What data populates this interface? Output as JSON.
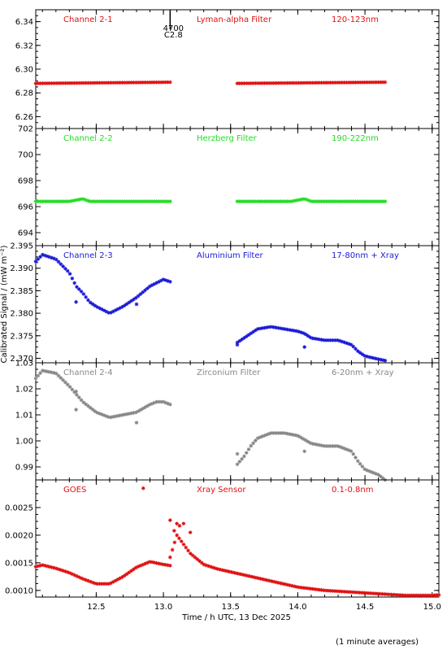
{
  "chart_data": [
    {
      "type": "scatter",
      "panel": "channel-2-1",
      "title": "Channel 2-1",
      "filter": "Lyman-alpha Filter",
      "range": "120-123nm",
      "color": "#e01010",
      "ylim": [
        6.25,
        6.35
      ],
      "yticks": [
        6.26,
        6.28,
        6.3,
        6.32,
        6.34
      ],
      "tick_decimals": 2,
      "marker_label": "4700",
      "marker_sublabel": "C2.8",
      "marker_x": 13.05,
      "segments": [
        {
          "x": [
            12.05,
            13.05
          ],
          "y": [
            6.288,
            6.289
          ]
        },
        {
          "x": [
            13.55,
            14.65
          ],
          "y": [
            6.288,
            6.289
          ]
        }
      ]
    },
    {
      "type": "scatter",
      "panel": "channel-2-2",
      "title": "Channel 2-2",
      "filter": "Herzberg Filter",
      "range": "190-222nm",
      "color": "#22dd22",
      "ylim": [
        693,
        702
      ],
      "yticks": [
        694,
        696,
        698,
        700,
        702
      ],
      "tick_decimals": 0,
      "segments": [
        {
          "x": [
            12.05,
            12.3,
            12.35,
            12.4,
            12.45,
            13.05
          ],
          "y": [
            696.4,
            696.4,
            696.5,
            696.6,
            696.4,
            696.4
          ]
        },
        {
          "x": [
            13.55,
            13.95,
            14.0,
            14.05,
            14.1,
            14.65
          ],
          "y": [
            696.4,
            696.4,
            696.5,
            696.6,
            696.4,
            696.4
          ]
        }
      ]
    },
    {
      "type": "scatter",
      "panel": "channel-2-3",
      "title": "Channel 2-3",
      "filter": "Aluminium Filter",
      "range": "17-80nm + Xray",
      "color": "#1a1ad8",
      "ylim": [
        2.369,
        2.395
      ],
      "yticks": [
        2.37,
        2.375,
        2.38,
        2.385,
        2.39,
        2.395
      ],
      "tick_decimals": 3,
      "segments": [
        {
          "x": [
            12.05,
            12.1,
            12.2,
            12.3,
            12.35,
            12.4,
            12.45,
            12.5,
            12.6,
            12.7,
            12.8,
            12.9,
            13.0,
            13.05
          ],
          "y": [
            2.3915,
            2.393,
            2.392,
            2.389,
            2.386,
            2.3845,
            2.3825,
            2.3815,
            2.38,
            2.3815,
            2.3835,
            2.386,
            2.3875,
            2.387
          ]
        },
        {
          "x": [
            13.55,
            13.6,
            13.65,
            13.7,
            13.8,
            13.9,
            14.0,
            14.05,
            14.1,
            14.2,
            14.3,
            14.4,
            14.45,
            14.5,
            14.6,
            14.65
          ],
          "y": [
            2.3735,
            2.3745,
            2.3755,
            2.3765,
            2.377,
            2.3765,
            2.376,
            2.3755,
            2.3745,
            2.374,
            2.374,
            2.373,
            2.3715,
            2.3705,
            2.3698,
            2.3695
          ]
        }
      ],
      "outliers": {
        "x": [
          12.35,
          12.8,
          13.55,
          14.05
        ],
        "y": [
          2.3825,
          2.382,
          2.373,
          2.3725
        ]
      }
    },
    {
      "type": "scatter",
      "panel": "channel-2-4",
      "title": "Channel 2-4",
      "filter": "Zirconium Filter",
      "range": "6-20nm + Xray",
      "color": "#888888",
      "ylim": [
        0.985,
        1.03
      ],
      "yticks": [
        0.99,
        1.0,
        1.01,
        1.02,
        1.03
      ],
      "tick_decimals": 2,
      "segments": [
        {
          "x": [
            12.05,
            12.1,
            12.2,
            12.3,
            12.35,
            12.4,
            12.5,
            12.6,
            12.7,
            12.8,
            12.9,
            12.95,
            13.0,
            13.05
          ],
          "y": [
            1.024,
            1.027,
            1.026,
            1.021,
            1.018,
            1.015,
            1.011,
            1.009,
            1.01,
            1.011,
            1.014,
            1.015,
            1.015,
            1.014
          ]
        },
        {
          "x": [
            13.55,
            13.6,
            13.65,
            13.7,
            13.8,
            13.9,
            14.0,
            14.1,
            14.2,
            14.3,
            14.4,
            14.45,
            14.5,
            14.6,
            14.65
          ],
          "y": [
            0.991,
            0.994,
            0.998,
            1.001,
            1.003,
            1.003,
            1.002,
            0.999,
            0.998,
            0.998,
            0.996,
            0.992,
            0.989,
            0.987,
            0.985
          ]
        }
      ],
      "outliers": {
        "x": [
          12.35,
          12.35,
          12.8,
          13.55,
          14.05
        ],
        "y": [
          1.019,
          1.012,
          1.007,
          0.995,
          0.996
        ]
      }
    },
    {
      "type": "scatter",
      "panel": "goes",
      "title": "GOES",
      "filter": "Xray Sensor",
      "range": "0.1-0.8nm",
      "color": "#e01010",
      "ylim": [
        0.00088,
        0.003
      ],
      "yticks": [
        0.001,
        0.0015,
        0.002,
        0.0025
      ],
      "tick_decimals": 4,
      "segments": [
        {
          "x": [
            12.05,
            12.1,
            12.2,
            12.3,
            12.4,
            12.5,
            12.6,
            12.7,
            12.8,
            12.9,
            13.0,
            13.05
          ],
          "y": [
            0.00143,
            0.00146,
            0.0014,
            0.00132,
            0.00121,
            0.00112,
            0.00112,
            0.00125,
            0.00142,
            0.00152,
            0.00147,
            0.00145
          ]
        },
        {
          "x": [
            13.05,
            13.1,
            13.2,
            13.3,
            13.4,
            13.6,
            13.8,
            14.0,
            14.2,
            14.4,
            14.6,
            14.8,
            15.0,
            15.05
          ],
          "y": [
            0.0016,
            0.002,
            0.00167,
            0.00147,
            0.00139,
            0.00128,
            0.00117,
            0.00106,
            0.001,
            0.00097,
            0.00094,
            0.00091,
            0.00091,
            0.00092
          ]
        }
      ],
      "outliers": {
        "x": [
          12.85,
          13.05,
          13.08,
          13.1,
          13.12,
          13.15,
          13.2
        ],
        "y": [
          0.00285,
          0.00227,
          0.00208,
          0.00221,
          0.00217,
          0.00221,
          0.00205
        ]
      }
    }
  ],
  "axes": {
    "xlabel": "Time / h UTC, 13 Dec 2025",
    "ylabel": "Calibrated Signal / (mW m⁻²)",
    "xlim": [
      12.05,
      15.05
    ],
    "xticks": [
      12.5,
      13.0,
      13.5,
      14.0,
      14.5,
      15.0
    ]
  },
  "footnote": "(1 minute averages)"
}
